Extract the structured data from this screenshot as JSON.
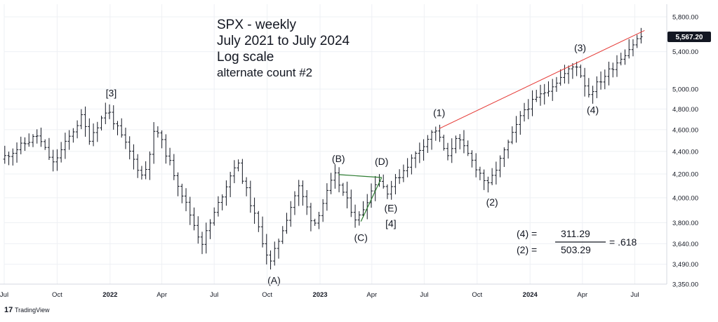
{
  "title_lines": [
    "SPX - weekly",
    "July 2021 to July 2024",
    "Log scale"
  ],
  "subtitle": "alternate count #2",
  "price_label": "5,567.20",
  "brand": "TradingView",
  "ratio": {
    "left_top": "(4) =",
    "left_bottom": "(2) =",
    "numerator": "311.29",
    "denominator": "503.29",
    "result": "= .618"
  },
  "chart_data": {
    "type": "ohlc",
    "scale": "log",
    "ylim": [
      3350,
      5800
    ],
    "xlim": [
      "2021-07-01",
      "2024-07-20"
    ],
    "yticks": [
      3350,
      3490,
      3640,
      3800,
      4000,
      4200,
      4400,
      4600,
      4800,
      5000,
      5400,
      5800
    ],
    "ytick_labels": [
      "3,350.00",
      "3,490.00",
      "3,640.00",
      "3,800.00",
      "4,000.00",
      "4,200.00",
      "4,400.00",
      "4,600.00",
      "4,800.00",
      "5,000.00",
      "5,400.00",
      "5,800.00"
    ],
    "xticks": [
      {
        "label": "Jul",
        "date": "2021-07-01",
        "bold": false
      },
      {
        "label": "Oct",
        "date": "2021-10-01",
        "bold": false
      },
      {
        "label": "2022",
        "date": "2022-01-01",
        "bold": true
      },
      {
        "label": "Apr",
        "date": "2022-04-01",
        "bold": false
      },
      {
        "label": "Jul",
        "date": "2022-07-01",
        "bold": false
      },
      {
        "label": "Oct",
        "date": "2022-10-01",
        "bold": false
      },
      {
        "label": "2023",
        "date": "2023-01-01",
        "bold": true
      },
      {
        "label": "Apr",
        "date": "2023-04-01",
        "bold": false
      },
      {
        "label": "Jul",
        "date": "2023-07-01",
        "bold": false
      },
      {
        "label": "Oct",
        "date": "2023-10-01",
        "bold": false
      },
      {
        "label": "2024",
        "date": "2024-01-01",
        "bold": true
      },
      {
        "label": "Apr",
        "date": "2024-04-01",
        "bold": false
      },
      {
        "label": "Jul",
        "date": "2024-07-01",
        "bold": false
      }
    ],
    "grid": true,
    "pivots": [
      {
        "date": "2021-07-02",
        "price": 4330
      },
      {
        "date": "2021-09-03",
        "price": 4545
      },
      {
        "date": "2021-10-01",
        "price": 4290
      },
      {
        "date": "2021-11-19",
        "price": 4720
      },
      {
        "date": "2021-12-03",
        "price": 4520
      },
      {
        "date": "2022-01-03",
        "price": 4800
      },
      {
        "date": "2022-03-07",
        "price": 4160
      },
      {
        "date": "2022-03-28",
        "price": 4630
      },
      {
        "date": "2022-06-16",
        "price": 3640
      },
      {
        "date": "2022-08-16",
        "price": 4320
      },
      {
        "date": "2022-10-13",
        "price": 3490
      },
      {
        "date": "2022-12-01",
        "price": 4100
      },
      {
        "date": "2022-12-28",
        "price": 3780
      },
      {
        "date": "2023-02-02",
        "price": 4195
      },
      {
        "date": "2023-03-13",
        "price": 3810
      },
      {
        "date": "2023-04-18",
        "price": 4170
      },
      {
        "date": "2023-05-04",
        "price": 4050
      },
      {
        "date": "2023-07-27",
        "price": 4610
      },
      {
        "date": "2023-08-18",
        "price": 4340
      },
      {
        "date": "2023-09-01",
        "price": 4540
      },
      {
        "date": "2023-10-27",
        "price": 4100
      },
      {
        "date": "2023-12-29",
        "price": 4795
      },
      {
        "date": "2024-03-28",
        "price": 5265
      },
      {
        "date": "2024-04-19",
        "price": 4955
      },
      {
        "date": "2024-07-16",
        "price": 5567
      }
    ],
    "annotations": [
      {
        "label": "[3]",
        "date": "2022-01-03",
        "price": 4800,
        "position": "above"
      },
      {
        "label": "(A)",
        "date": "2022-10-13",
        "price": 3490,
        "position": "below"
      },
      {
        "label": "(B)",
        "date": "2023-02-02",
        "price": 4195,
        "position": "above"
      },
      {
        "label": "(C)",
        "date": "2023-03-13",
        "price": 3810,
        "position": "below"
      },
      {
        "label": "(D)",
        "date": "2023-04-18",
        "price": 4170,
        "position": "above"
      },
      {
        "label": "(E)",
        "date": "2023-05-04",
        "price": 4050,
        "position": "below"
      },
      {
        "label": "[4]",
        "date": "2023-05-04",
        "price": 4050,
        "position": "below2"
      },
      {
        "label": "(1)",
        "date": "2023-07-27",
        "price": 4610,
        "position": "above"
      },
      {
        "label": "(2)",
        "date": "2023-10-27",
        "price": 4100,
        "position": "below"
      },
      {
        "label": "(3)",
        "date": "2024-03-28",
        "price": 5265,
        "position": "above"
      },
      {
        "label": "(4)",
        "date": "2024-04-19",
        "price": 4955,
        "position": "below"
      }
    ],
    "trendline": {
      "color": "#e53935",
      "from": {
        "date": "2023-07-27",
        "price": 4610
      },
      "to": {
        "date": "2024-07-18",
        "price": 5640
      }
    },
    "triangle": {
      "color": "#2e7d32",
      "points": [
        {
          "date": "2023-02-02",
          "price": 4195
        },
        {
          "date": "2023-04-18",
          "price": 4170
        },
        {
          "date": "2023-03-13",
          "price": 3810
        },
        {
          "date": "2023-04-18",
          "price": 4170
        }
      ]
    },
    "bar_color": "#131722",
    "grid_color": "#eef0f4"
  }
}
